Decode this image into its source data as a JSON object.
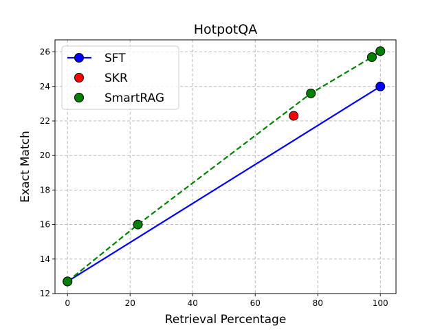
{
  "chart_data": {
    "type": "line",
    "title": "HotpotQA",
    "xlabel": "Retrieval Percentage",
    "ylabel": "Exact Match",
    "xlim": [
      -4,
      105
    ],
    "ylim": [
      12,
      26.7
    ],
    "xticks": [
      0,
      20,
      40,
      60,
      80,
      100
    ],
    "yticks": [
      12,
      14,
      16,
      18,
      20,
      22,
      24,
      26
    ],
    "grid": true,
    "legend_position": "top-left",
    "series": [
      {
        "name": "SFT",
        "style": "line",
        "color": "#0000ff",
        "marker_color": "#0000ff",
        "points": [
          [
            0,
            12.7
          ],
          [
            100,
            24.0
          ]
        ]
      },
      {
        "name": "SKR",
        "style": "scatter",
        "color": "#ff0000",
        "marker_color": "#ff0000",
        "points": [
          [
            72.3,
            22.3
          ]
        ]
      },
      {
        "name": "SmartRAG",
        "style": "dashed-line",
        "color": "#008000",
        "marker_color": "#008000",
        "points": [
          [
            0,
            12.7
          ],
          [
            22.5,
            16.0
          ],
          [
            77.8,
            23.6
          ],
          [
            97.3,
            25.7
          ],
          [
            100,
            26.05
          ]
        ]
      }
    ]
  }
}
